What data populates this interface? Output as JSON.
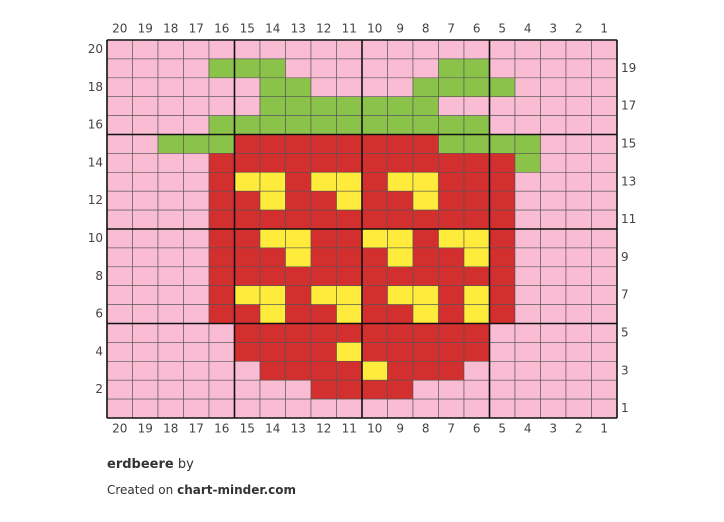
{
  "chart": {
    "columns": [
      20,
      19,
      18,
      17,
      16,
      15,
      14,
      13,
      12,
      11,
      10,
      9,
      8,
      7,
      6,
      5,
      4,
      3,
      2,
      1
    ],
    "rows": [
      20,
      19,
      18,
      17,
      16,
      15,
      14,
      13,
      12,
      11,
      10,
      9,
      8,
      7,
      6,
      5,
      4,
      3,
      2,
      1
    ],
    "palette": {
      "P": "#f9bcd3",
      "G": "#8bc34a",
      "R": "#d32f2f",
      "Y": "#ffeb3b"
    },
    "grid": [
      "PPPPPPPPPPPPPPPPPPPP",
      "PPPPGGGPPPPPPGGPPPPP",
      "PPPPPPGGPPPPGGGGPPPP",
      "PPPPPPGGGGGGGPPPPPPP",
      "PPPPGGGGGGGGGGGPPPPP",
      "PPGGGRRRRRRRRGGGGPPP",
      "PPPPRRRRRRRRRRRRGPPP",
      "PPPPRYYRYYRYYRRRPPPP",
      "PPPPRRYRRYRRYRRRPPPP",
      "PPPPRRRRRRRRRRRRPPPP",
      "PPPPRRYYRRYYRYYRPPPP",
      "PPPPRRRYRRRYRRYRPPPP",
      "PPPPRRRRRRRRRRRRPPPP",
      "PPPPRYYRYYRYYRYRPPPP",
      "PPPPRRYRRYRRYRYRPPPP",
      "PPPPPRRRRRRRRRRPPPPP",
      "PPPPPRRRRYRRRRRPPPPP",
      "PPPPPPRRRRYRRRPPPPPP",
      "PPPPPPPPRRRRPPPPPPPP",
      "PPPPPPPPPPPPPPPPPPPP"
    ]
  },
  "footer": {
    "title": "erdbeere",
    "by": "by",
    "created": "Created on",
    "site": "chart-minder.com"
  }
}
